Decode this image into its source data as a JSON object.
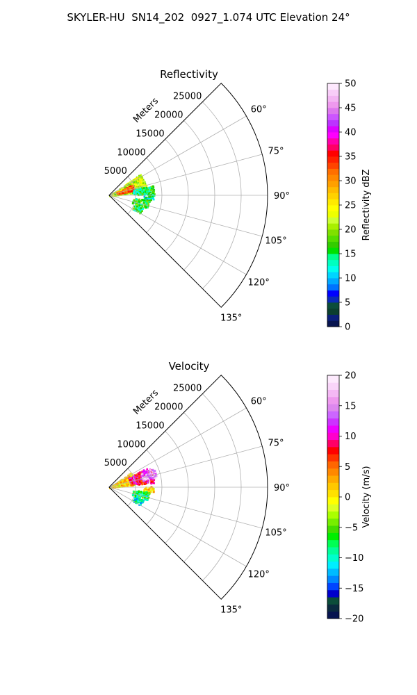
{
  "suptitle": "SKYLER-HU  SN14_202  0927_1.074 UTC Elevation 24°",
  "colors": {
    "reflectivity_scale": [
      "#07144f",
      "#0a1f7a",
      "#0b3f2f",
      "#0b4d3a",
      "#0a2ab8",
      "#0000ff",
      "#0073ff",
      "#00a8ff",
      "#00d5ff",
      "#00ffee",
      "#00ffc0",
      "#00ff8c",
      "#00e000",
      "#33cc00",
      "#55dd00",
      "#7fe000",
      "#a8ef00",
      "#ccff33",
      "#eeff00",
      "#ffff00",
      "#ffea00",
      "#ffd200",
      "#ffbb00",
      "#ffa000",
      "#ff8800",
      "#ff6f00",
      "#ff4400",
      "#ff2000",
      "#ff0000",
      "#ff0066",
      "#ff00aa",
      "#ff00ff",
      "#dd00ff",
      "#bb33ff",
      "#cc55ff",
      "#dd77ee",
      "#ee99ee",
      "#f3b5f3",
      "#f8cdf8",
      "#fde8fd"
    ],
    "velocity_scale": [
      "#07144f",
      "#0a2a3f",
      "#0b4d3a",
      "#0000cc",
      "#0044ff",
      "#0088ff",
      "#00bbff",
      "#00eeff",
      "#00ffcc",
      "#00ff99",
      "#00ff55",
      "#00ee00",
      "#44dd00",
      "#77ee00",
      "#aaff00",
      "#ddff22",
      "#ffff00",
      "#ffe100",
      "#ffc800",
      "#ffaa00",
      "#ff8800",
      "#ff6600",
      "#ff3300",
      "#ff0000",
      "#ff0066",
      "#ff00cc",
      "#ee00ff",
      "#cc33ff",
      "#cc66ff",
      "#dd88ee",
      "#ee99ee",
      "#f4b8f4",
      "#f9d5f9",
      "#fdeafd"
    ]
  },
  "chart_data": [
    {
      "type": "heatmap",
      "projection": "polar-sector",
      "title": "Reflectivity",
      "range_label": "Meters",
      "range_ticks": [
        5000,
        10000,
        15000,
        20000,
        25000
      ],
      "range_max": 30000,
      "azimuth_range": [
        45,
        135
      ],
      "azimuth_ticks": [
        "60°",
        "75°",
        "90°",
        "105°",
        "120°",
        "135°"
      ],
      "colorbar": {
        "label": "Reflectivity dBZ",
        "min": 0,
        "max": 50,
        "ticks": [
          "0",
          "5",
          "10",
          "15",
          "20",
          "25",
          "30",
          "35",
          "40",
          "45",
          "50"
        ]
      },
      "grid": true,
      "echo_regions": [
        {
          "az": [
            55,
            84
          ],
          "range": [
            0,
            7200
          ],
          "value": 22
        },
        {
          "az": [
            64,
            78
          ],
          "range": [
            1500,
            4800
          ],
          "value": 33
        },
        {
          "az": [
            76,
            88
          ],
          "range": [
            4500,
            8500
          ],
          "value": 15
        },
        {
          "az": [
            88,
            96
          ],
          "range": [
            6500,
            8400
          ],
          "value": 13
        },
        {
          "az": [
            96,
            108
          ],
          "range": [
            4500,
            7600
          ],
          "value": 17
        },
        {
          "az": [
            110,
            120
          ],
          "range": [
            5000,
            6800
          ],
          "value": 15
        }
      ]
    },
    {
      "type": "heatmap",
      "projection": "polar-sector",
      "title": "Velocity",
      "range_label": "Meters",
      "range_ticks": [
        5000,
        10000,
        15000,
        20000,
        25000
      ],
      "range_max": 30000,
      "azimuth_range": [
        45,
        135
      ],
      "azimuth_ticks": [
        "60°",
        "75°",
        "90°",
        "105°",
        "120°",
        "135°"
      ],
      "colorbar": {
        "label": "Velocity (m/s)",
        "min": -20,
        "max": 20,
        "ticks": [
          "−20",
          "−15",
          "−10",
          "−5",
          "0",
          "5",
          "10",
          "15",
          "20"
        ]
      },
      "grid": true,
      "echo_regions": [
        {
          "az": [
            55,
            84
          ],
          "range": [
            0,
            5000
          ],
          "value": 1
        },
        {
          "az": [
            62,
            84
          ],
          "range": [
            4000,
            8500
          ],
          "value": 9
        },
        {
          "az": [
            66,
            78
          ],
          "range": [
            6500,
            9200
          ],
          "value": 15
        },
        {
          "az": [
            88,
            96
          ],
          "range": [
            6500,
            8400
          ],
          "value": 1
        },
        {
          "az": [
            96,
            108
          ],
          "range": [
            4500,
            7600
          ],
          "value": -8
        },
        {
          "az": [
            110,
            120
          ],
          "range": [
            5000,
            6800
          ],
          "value": -10
        }
      ]
    }
  ]
}
